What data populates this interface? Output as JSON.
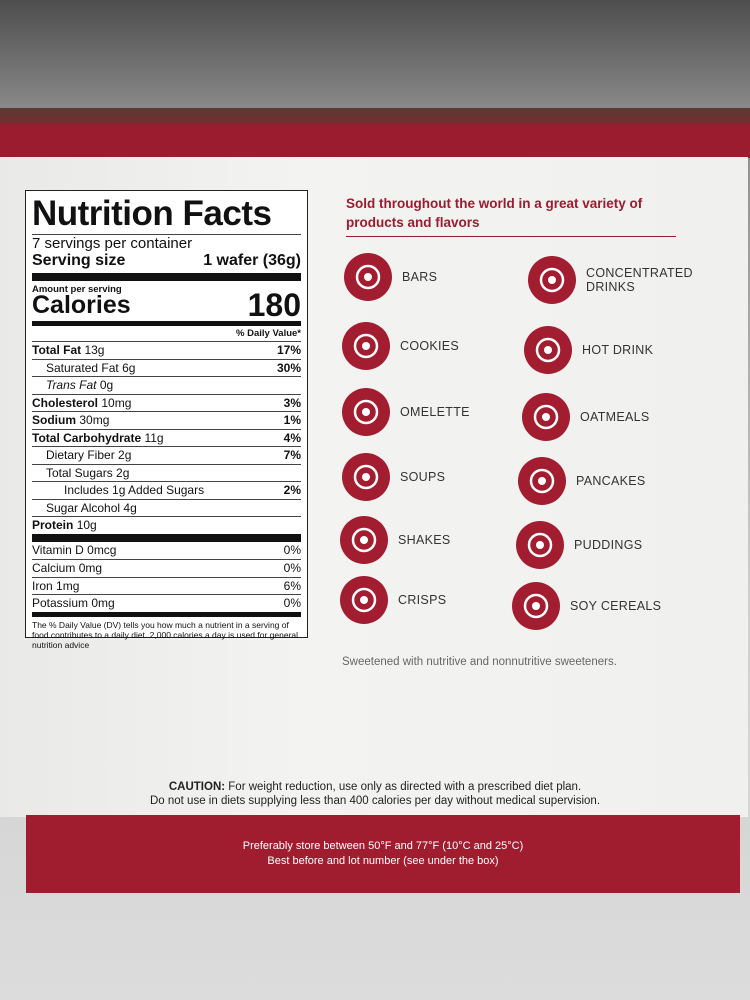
{
  "nutrition": {
    "title": "Nutrition Facts",
    "servings": "7 servings per container",
    "serving_size_label": "Serving size",
    "serving_size": "1 wafer (36g)",
    "amount_per_serving": "Amount per serving",
    "calories_label": "Calories",
    "calories": "180",
    "dv_header": "% Daily Value*",
    "rows": [
      {
        "name": "Total Fat",
        "amount": "13g",
        "dv": "17%"
      },
      {
        "name": "Saturated Fat",
        "amount": "6g",
        "dv": "30%"
      },
      {
        "name": "Trans Fat",
        "amount": "0g"
      },
      {
        "name": "Cholesterol",
        "amount": "10mg",
        "dv": "3%"
      },
      {
        "name": "Sodium",
        "amount": "30mg",
        "dv": "1%"
      },
      {
        "name": "Total Carbohydrate",
        "amount": "11g",
        "dv": "4%"
      },
      {
        "name": "Dietary Fiber",
        "amount": "2g",
        "dv": "7%"
      },
      {
        "name": "Total Sugars",
        "amount": "2g"
      },
      {
        "name": "Includes 1g Added Sugars",
        "dv": "2%"
      },
      {
        "name": "Sugar Alcohol",
        "amount": "4g"
      },
      {
        "name": "Protein",
        "amount": "10g"
      }
    ],
    "vitamins": [
      {
        "name": "Vitamin D",
        "amount": "0mcg",
        "dv": "0%"
      },
      {
        "name": "Calcium",
        "amount": "0mg",
        "dv": "0%"
      },
      {
        "name": "Iron",
        "amount": "1mg",
        "dv": "6%"
      },
      {
        "name": "Potassium",
        "amount": "0mg",
        "dv": "0%"
      }
    ],
    "footnote": "The % Daily Value (DV) tells you how much a nutrient in a serving of food contributes to a daily diet. 2,000 calories a day is used for general nutrition advice"
  },
  "products_heading": "Sold throughout the world in a great variety of products and flavors",
  "products": [
    {
      "label": "BARS"
    },
    {
      "label": "COOKIES"
    },
    {
      "label": "OMELETTE"
    },
    {
      "label": "SOUPS"
    },
    {
      "label": "SHAKES"
    },
    {
      "label": "CRISPS"
    },
    {
      "label": "CONCENTRATED DRINKS"
    },
    {
      "label": "HOT DRINK"
    },
    {
      "label": "OATMEALS"
    },
    {
      "label": "PANCAKES"
    },
    {
      "label": "PUDDINGS"
    },
    {
      "label": "SOY CEREALS"
    }
  ],
  "sweetener_note": "Sweetened with nutritive and nonnutritive sweeteners.",
  "caution": {
    "label": "CAUTION:",
    "line1": "For weight reduction, use only as directed with a prescribed diet plan.",
    "line2": "Do not use in diets supplying less than 400 calories per day without medical supervision."
  },
  "storage": {
    "line1": "Preferably store between 50°F and 77°F (10°C and 25°C)",
    "line2": "Best before and lot number (see under the box)"
  }
}
